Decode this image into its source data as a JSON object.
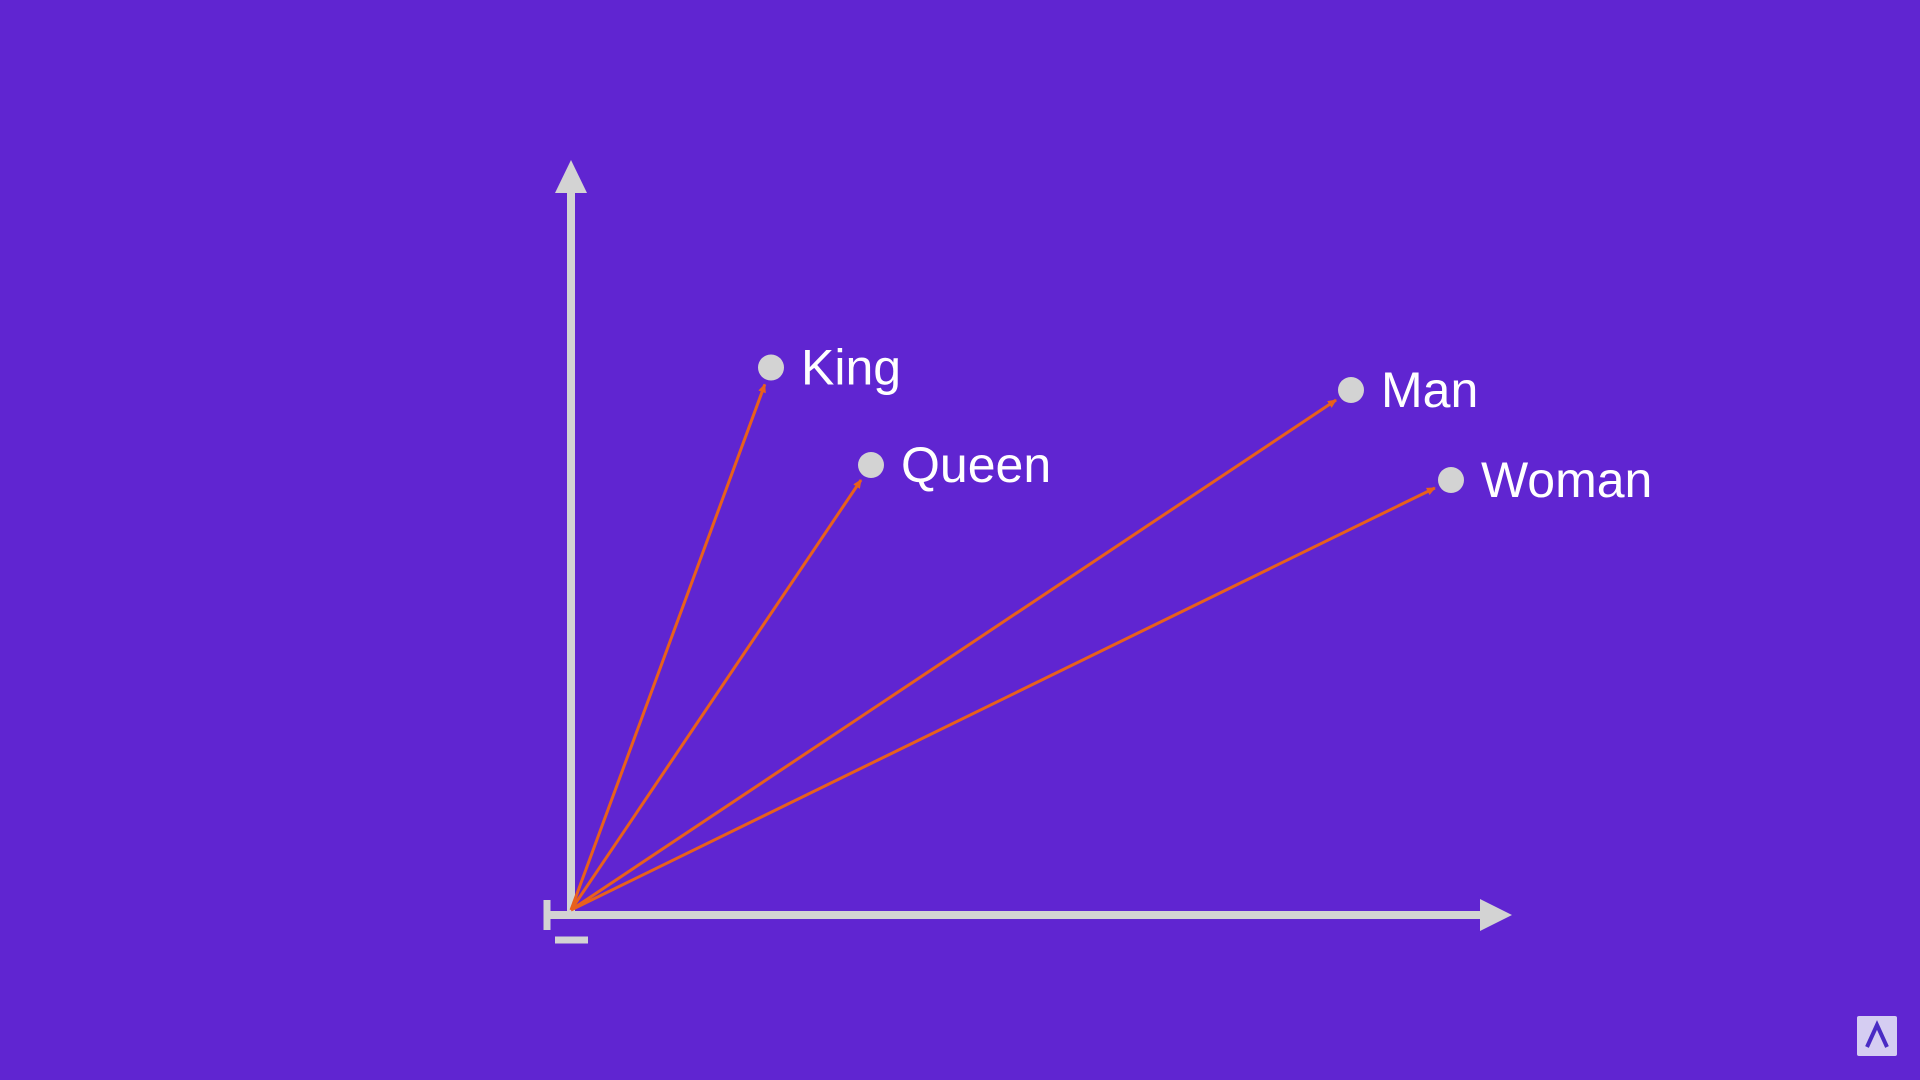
{
  "diagram": {
    "type": "vector-plot",
    "colors": {
      "background": "#6025D1",
      "axis": "#D3D3D3",
      "arrow": "#E8601C",
      "point": "#D3D3D3",
      "label": "#FFFFFF"
    },
    "words": [
      {
        "label": "King",
        "x": 2.0,
        "y": 7.3
      },
      {
        "label": "Queen",
        "x": 3.0,
        "y": 6.0
      },
      {
        "label": "Man",
        "x": 7.8,
        "y": 7.0
      },
      {
        "label": "Woman",
        "x": 8.8,
        "y": 5.8
      }
    ]
  },
  "logo": {
    "icon": "lambda-logo-icon"
  }
}
